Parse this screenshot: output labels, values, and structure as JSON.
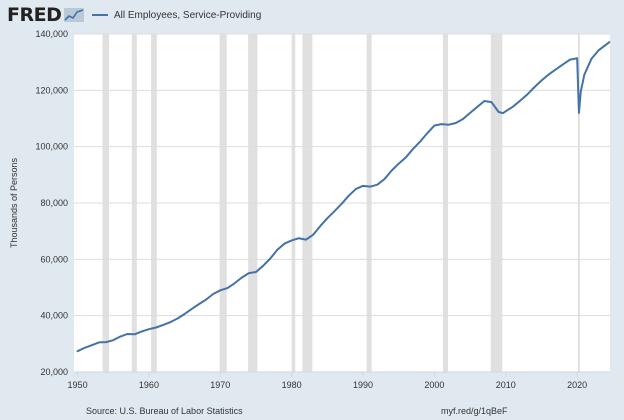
{
  "header": {
    "logo": "FRED",
    "logo_icon": "fred-graph-mark-icon"
  },
  "footer": {
    "source": "Source: U.S. Bureau of Labor Statistics",
    "short_url": "myf.red/g/1qBeF"
  },
  "colors": {
    "background": "#e1e9f0",
    "plot_area": "#ffffff",
    "series_line": "#4572a7",
    "recession_band": "#e0e0e0",
    "gridline": "#dddddd"
  },
  "chart_data": {
    "type": "line",
    "title": "",
    "xlabel": "",
    "ylabel": "Thousands of Persons",
    "xlim": [
      1949.5,
      2024.6
    ],
    "ylim": [
      20000,
      140000
    ],
    "grid": "horizontal",
    "legend_position": "top-left",
    "x_ticks": [
      1950,
      1960,
      1970,
      1980,
      1990,
      2000,
      2010,
      2020
    ],
    "x_tick_labels": [
      "1950",
      "1960",
      "1970",
      "1980",
      "1990",
      "2000",
      "2010",
      "2020"
    ],
    "y_ticks": [
      20000,
      40000,
      60000,
      80000,
      100000,
      120000,
      140000
    ],
    "y_tick_labels": [
      "20,000",
      "40,000",
      "60,000",
      "80,000",
      "100,000",
      "120,000",
      "140,000"
    ],
    "recessions": [
      [
        1953.5,
        1954.4
      ],
      [
        1957.6,
        1958.3
      ],
      [
        1960.3,
        1961.1
      ],
      [
        1969.9,
        1970.9
      ],
      [
        1973.9,
        1975.2
      ],
      [
        1980.0,
        1980.5
      ],
      [
        1981.5,
        1982.9
      ],
      [
        1990.5,
        1991.2
      ],
      [
        2001.2,
        2001.9
      ],
      [
        2007.9,
        2009.5
      ],
      [
        2020.1,
        2020.3
      ]
    ],
    "series": [
      {
        "name": "All Employees, Service-Providing",
        "x": [
          1950,
          1951,
          1952,
          1953,
          1954,
          1955,
          1956,
          1957,
          1958,
          1959,
          1960,
          1961,
          1962,
          1963,
          1964,
          1965,
          1966,
          1967,
          1968,
          1969,
          1970,
          1971,
          1972,
          1973,
          1974,
          1975,
          1976,
          1977,
          1978,
          1979,
          1980,
          1981,
          1982,
          1983,
          1984,
          1985,
          1986,
          1987,
          1988,
          1989,
          1990,
          1991,
          1992,
          1993,
          1994,
          1995,
          1996,
          1997,
          1998,
          1999,
          2000,
          2001,
          2002,
          2003,
          2004,
          2005,
          2006,
          2007,
          2008,
          2009,
          2009.6,
          2010,
          2011,
          2012,
          2013,
          2014,
          2015,
          2016,
          2017,
          2018,
          2019,
          2020,
          2020.25,
          2020.5,
          2021,
          2022,
          2023,
          2024.5
        ],
        "y": [
          27400,
          28600,
          29500,
          30500,
          30600,
          31300,
          32600,
          33500,
          33400,
          34400,
          35200,
          35800,
          36700,
          37700,
          39000,
          40600,
          42400,
          44100,
          45700,
          47700,
          49000,
          49800,
          51500,
          53500,
          55100,
          55500,
          57700,
          60300,
          63400,
          65600,
          66700,
          67500,
          67000,
          68700,
          71800,
          74600,
          77100,
          79700,
          82600,
          85000,
          86100,
          85800,
          86500,
          88500,
          91500,
          94000,
          96200,
          99200,
          101800,
          104800,
          107500,
          108000,
          107800,
          108400,
          109800,
          112000,
          114100,
          116200,
          115800,
          112300,
          111900,
          112600,
          114200,
          116300,
          118500,
          121100,
          123500,
          125600,
          127400,
          129200,
          130900,
          131400,
          112000,
          119500,
          125500,
          131200,
          134200,
          137100
        ]
      }
    ]
  }
}
